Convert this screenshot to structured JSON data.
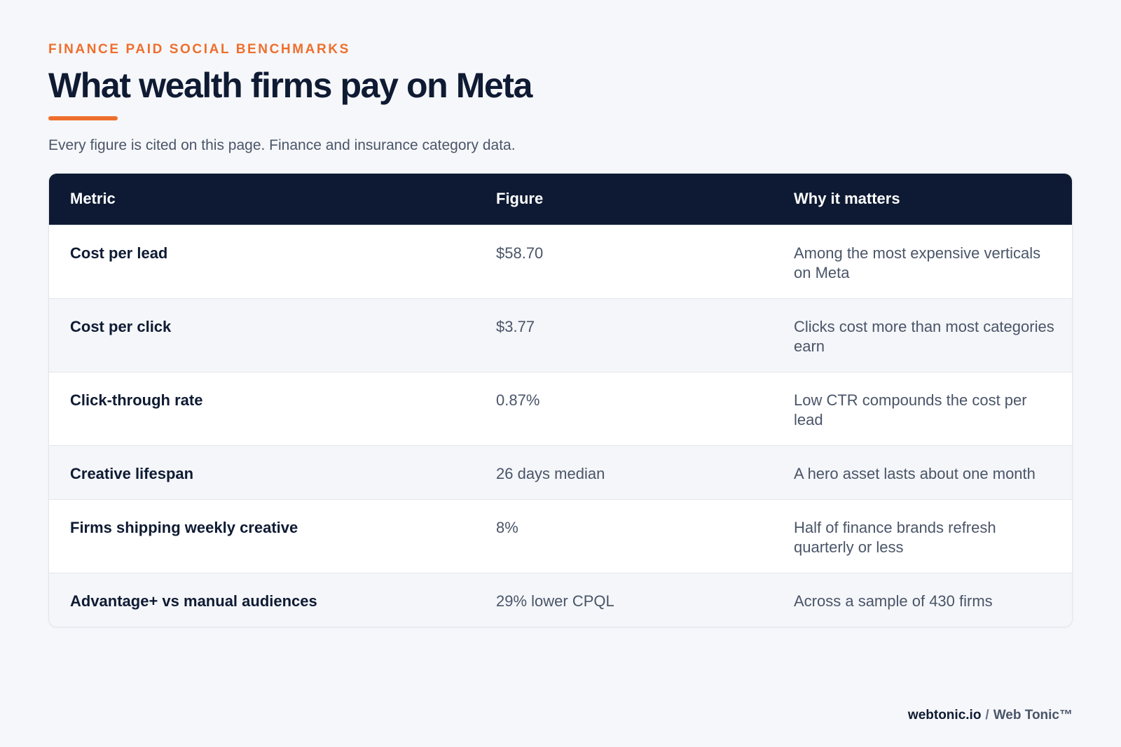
{
  "header": {
    "eyebrow": "FINANCE PAID SOCIAL BENCHMARKS",
    "title": "What wealth firms pay on Meta",
    "subtitle": "Every figure is cited on this page. Finance and insurance category data."
  },
  "table": {
    "columns": [
      "Metric",
      "Figure",
      "Why it matters"
    ],
    "rows": [
      {
        "metric": "Cost per lead",
        "figure": "$58.70",
        "why": "Among the most expensive verticals on Meta"
      },
      {
        "metric": "Cost per click",
        "figure": "$3.77",
        "why": "Clicks cost more than most categories earn"
      },
      {
        "metric": "Click-through rate",
        "figure": "0.87%",
        "why": "Low CTR compounds the cost per lead"
      },
      {
        "metric": "Creative lifespan",
        "figure": "26 days median",
        "why": "A hero asset lasts about one month"
      },
      {
        "metric": "Firms shipping weekly creative",
        "figure": "8%",
        "why": "Half of finance brands refresh quarterly or less"
      },
      {
        "metric": "Advantage+ vs manual audiences",
        "figure": "29% lower CPQL",
        "why": "Across a sample of 430 firms"
      }
    ]
  },
  "footer": {
    "site": "webtonic.io",
    "separator": "/",
    "brand": "Web Tonic™"
  },
  "colors": {
    "accent": "#ee6f2d",
    "header_bg": "#0e1a33",
    "text_dark": "#0f1b33",
    "text_muted": "#4a5568",
    "page_bg": "#f6f7fa"
  }
}
